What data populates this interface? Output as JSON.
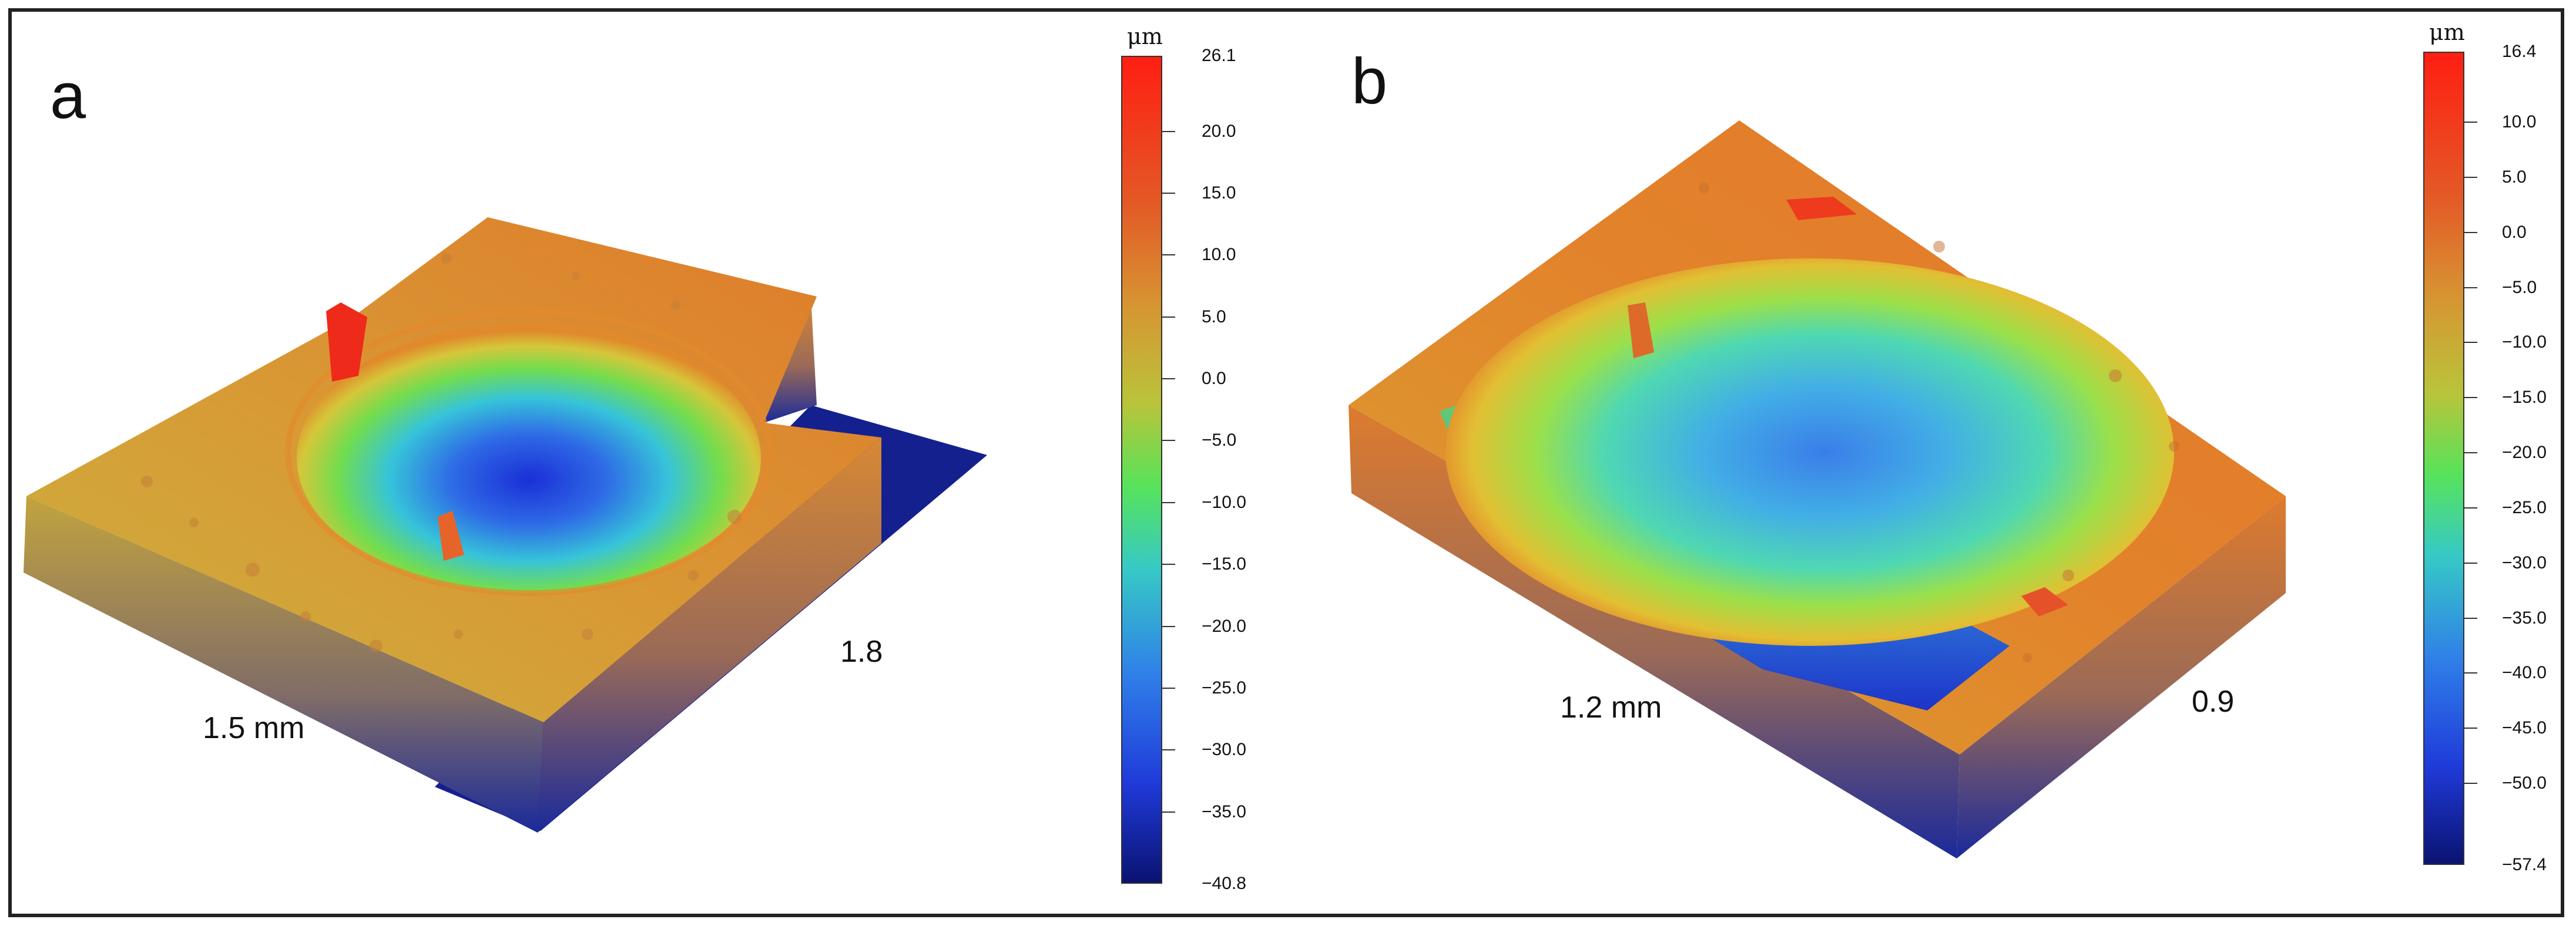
{
  "panels": [
    {
      "letter": "a",
      "axis_x_label": "1.5 mm",
      "axis_y_label": "1.8",
      "colorbar": {
        "unit": "μm",
        "max_label": "26.1",
        "min_label": "−40.8",
        "max_value": 26.1,
        "min_value": -40.8,
        "ticks": [
          {
            "value": 20.0,
            "label": "20.0"
          },
          {
            "value": 15.0,
            "label": "15.0"
          },
          {
            "value": 10.0,
            "label": "10.0"
          },
          {
            "value": 5.0,
            "label": "5.0"
          },
          {
            "value": 0.0,
            "label": "0.0"
          },
          {
            "value": -5.0,
            "label": "−5.0"
          },
          {
            "value": -10.0,
            "label": "−10.0"
          },
          {
            "value": -15.0,
            "label": "−15.0"
          },
          {
            "value": -20.0,
            "label": "−20.0"
          },
          {
            "value": -25.0,
            "label": "−25.0"
          },
          {
            "value": -30.0,
            "label": "−30.0"
          },
          {
            "value": -35.0,
            "label": "−35.0"
          }
        ]
      }
    },
    {
      "letter": "b",
      "axis_x_label": "1.2 mm",
      "axis_y_label": "0.9",
      "colorbar": {
        "unit": "μm",
        "max_label": "16.4",
        "min_label": "−57.4",
        "max_value": 16.4,
        "min_value": -57.4,
        "ticks": [
          {
            "value": 10.0,
            "label": "10.0"
          },
          {
            "value": 5.0,
            "label": "5.0"
          },
          {
            "value": 0.0,
            "label": "0.0"
          },
          {
            "value": -5.0,
            "label": "−5.0"
          },
          {
            "value": -10.0,
            "label": "−10.0"
          },
          {
            "value": -15.0,
            "label": "−15.0"
          },
          {
            "value": -20.0,
            "label": "−20.0"
          },
          {
            "value": -25.0,
            "label": "−25.0"
          },
          {
            "value": -30.0,
            "label": "−30.0"
          },
          {
            "value": -35.0,
            "label": "−35.0"
          },
          {
            "value": -40.0,
            "label": "−40.0"
          },
          {
            "value": -45.0,
            "label": "−45.0"
          },
          {
            "value": -50.0,
            "label": "−50.0"
          }
        ]
      }
    }
  ],
  "colors": {
    "red": "#e8291c",
    "orange": "#e07a2a",
    "yellow": "#d7b43a",
    "green": "#5fd35a",
    "cyan": "#35b9e8",
    "blue": "#2a48e0",
    "navy": "#0b1775",
    "frame": "#222222"
  }
}
